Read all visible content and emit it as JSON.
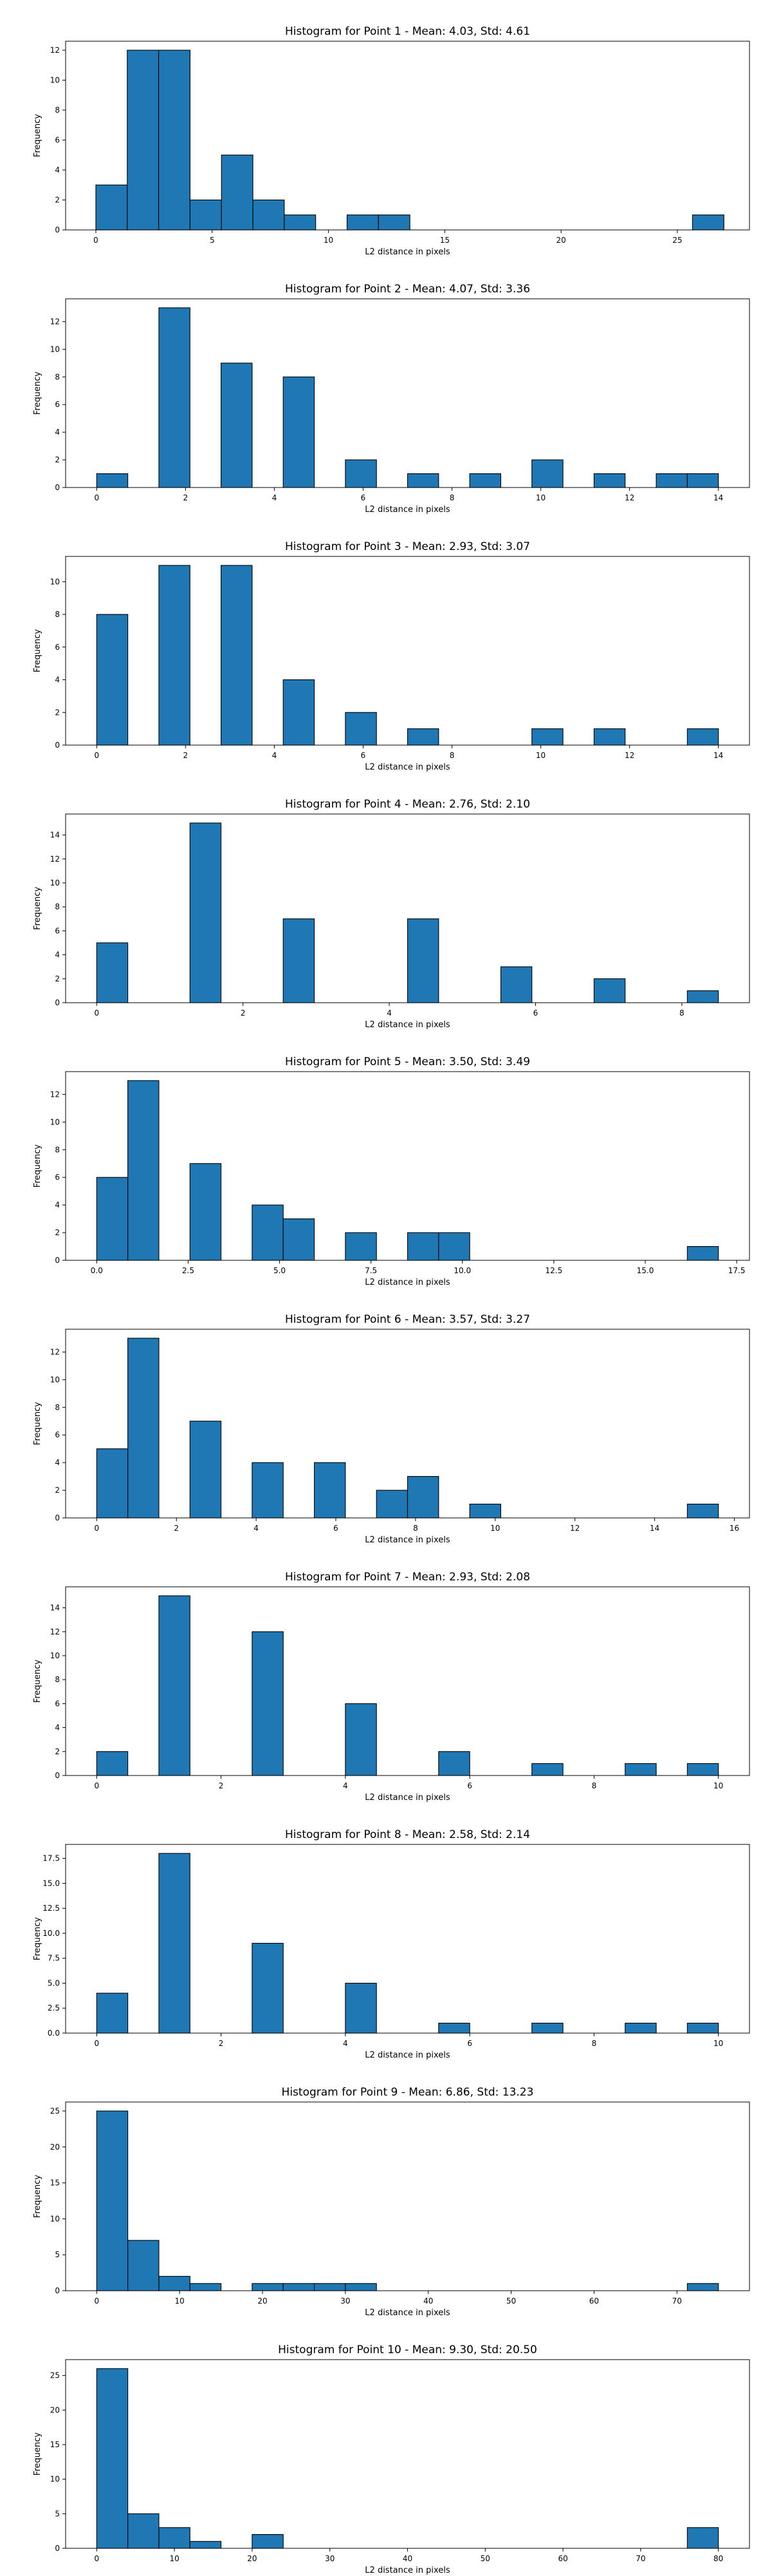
{
  "chart_data": [
    {
      "type": "bar",
      "title": "Histogram for Point 1 - Mean: 4.03, Std: 4.61",
      "xlabel": "L2 distance in pixels",
      "ylabel": "Frequency",
      "xlim": [
        -1.3,
        28.1
      ],
      "ylim": [
        0,
        12.6
      ],
      "xticks": [
        0,
        5,
        10,
        15,
        20,
        25
      ],
      "xtick_labels": [
        "0",
        "5",
        "10",
        "15",
        "20",
        "25"
      ],
      "yticks": [
        0,
        2,
        4,
        6,
        8,
        10,
        12
      ],
      "ytick_labels": [
        "0",
        "2",
        "4",
        "6",
        "8",
        "10",
        "12"
      ],
      "bins": [
        {
          "x0": 0.0,
          "x1": 1.35,
          "count": 3
        },
        {
          "x0": 1.35,
          "x1": 2.7,
          "count": 12
        },
        {
          "x0": 2.7,
          "x1": 4.05,
          "count": 12
        },
        {
          "x0": 4.05,
          "x1": 5.4,
          "count": 2
        },
        {
          "x0": 5.4,
          "x1": 6.75,
          "count": 5
        },
        {
          "x0": 6.75,
          "x1": 8.1,
          "count": 2
        },
        {
          "x0": 8.1,
          "x1": 9.45,
          "count": 1
        },
        {
          "x0": 10.8,
          "x1": 12.15,
          "count": 1
        },
        {
          "x0": 12.15,
          "x1": 13.5,
          "count": 1
        },
        {
          "x0": 25.65,
          "x1": 27.0,
          "count": 1
        }
      ]
    },
    {
      "type": "bar",
      "title": "Histogram for Point 2 - Mean: 4.07, Std: 3.36",
      "xlabel": "L2 distance in pixels",
      "ylabel": "Frequency",
      "xlim": [
        -0.7,
        14.7
      ],
      "ylim": [
        0,
        13.65
      ],
      "xticks": [
        0,
        2,
        4,
        6,
        8,
        10,
        12,
        14
      ],
      "xtick_labels": [
        "0",
        "2",
        "4",
        "6",
        "8",
        "10",
        "12",
        "14"
      ],
      "yticks": [
        0,
        2,
        4,
        6,
        8,
        10,
        12
      ],
      "ytick_labels": [
        "0",
        "2",
        "4",
        "6",
        "8",
        "10",
        "12"
      ],
      "bins": [
        {
          "x0": 0.0,
          "x1": 0.7,
          "count": 1
        },
        {
          "x0": 1.4,
          "x1": 2.1,
          "count": 13
        },
        {
          "x0": 2.8,
          "x1": 3.5,
          "count": 9
        },
        {
          "x0": 4.2,
          "x1": 4.9,
          "count": 8
        },
        {
          "x0": 5.6,
          "x1": 6.3,
          "count": 2
        },
        {
          "x0": 7.0,
          "x1": 7.7,
          "count": 1
        },
        {
          "x0": 8.4,
          "x1": 9.1,
          "count": 1
        },
        {
          "x0": 9.8,
          "x1": 10.5,
          "count": 2
        },
        {
          "x0": 11.2,
          "x1": 11.9,
          "count": 1
        },
        {
          "x0": 12.6,
          "x1": 13.3,
          "count": 1
        },
        {
          "x0": 13.3,
          "x1": 14.0,
          "count": 1
        }
      ]
    },
    {
      "type": "bar",
      "title": "Histogram for Point 3 - Mean: 2.93, Std: 3.07",
      "xlabel": "L2 distance in pixels",
      "ylabel": "Frequency",
      "xlim": [
        -0.7,
        14.7
      ],
      "ylim": [
        0,
        11.55
      ],
      "xticks": [
        0,
        2,
        4,
        6,
        8,
        10,
        12,
        14
      ],
      "xtick_labels": [
        "0",
        "2",
        "4",
        "6",
        "8",
        "10",
        "12",
        "14"
      ],
      "yticks": [
        0,
        2,
        4,
        6,
        8,
        10
      ],
      "ytick_labels": [
        "0",
        "2",
        "4",
        "6",
        "8",
        "10"
      ],
      "bins": [
        {
          "x0": 0.0,
          "x1": 0.7,
          "count": 8
        },
        {
          "x0": 1.4,
          "x1": 2.1,
          "count": 11
        },
        {
          "x0": 2.8,
          "x1": 3.5,
          "count": 11
        },
        {
          "x0": 4.2,
          "x1": 4.9,
          "count": 4
        },
        {
          "x0": 5.6,
          "x1": 6.3,
          "count": 2
        },
        {
          "x0": 7.0,
          "x1": 7.7,
          "count": 1
        },
        {
          "x0": 9.8,
          "x1": 10.5,
          "count": 1
        },
        {
          "x0": 11.2,
          "x1": 11.9,
          "count": 1
        },
        {
          "x0": 13.3,
          "x1": 14.0,
          "count": 1
        }
      ]
    },
    {
      "type": "bar",
      "title": "Histogram for Point 4 - Mean: 2.76, Std: 2.10",
      "xlabel": "L2 distance in pixels",
      "ylabel": "Frequency",
      "xlim": [
        -0.425,
        8.925
      ],
      "ylim": [
        0,
        15.75
      ],
      "xticks": [
        0,
        2,
        4,
        6,
        8
      ],
      "xtick_labels": [
        "0",
        "2",
        "4",
        "6",
        "8"
      ],
      "yticks": [
        0,
        2,
        4,
        6,
        8,
        10,
        12,
        14
      ],
      "ytick_labels": [
        "0",
        "2",
        "4",
        "6",
        "8",
        "10",
        "12",
        "14"
      ],
      "bins": [
        {
          "x0": 0.0,
          "x1": 0.425,
          "count": 5
        },
        {
          "x0": 1.275,
          "x1": 1.7,
          "count": 15
        },
        {
          "x0": 2.55,
          "x1": 2.975,
          "count": 7
        },
        {
          "x0": 4.25,
          "x1": 4.675,
          "count": 7
        },
        {
          "x0": 5.525,
          "x1": 5.95,
          "count": 3
        },
        {
          "x0": 6.8,
          "x1": 7.225,
          "count": 2
        },
        {
          "x0": 8.075,
          "x1": 8.5,
          "count": 1
        }
      ]
    },
    {
      "type": "bar",
      "title": "Histogram for Point 5 - Mean: 3.50, Std: 3.49",
      "xlabel": "L2 distance in pixels",
      "ylabel": "Frequency",
      "xlim": [
        -0.85,
        17.85
      ],
      "ylim": [
        0,
        13.65
      ],
      "xticks": [
        0.0,
        2.5,
        5.0,
        7.5,
        10.0,
        12.5,
        15.0,
        17.5
      ],
      "xtick_labels": [
        "0.0",
        "2.5",
        "5.0",
        "7.5",
        "10.0",
        "12.5",
        "15.0",
        "17.5"
      ],
      "yticks": [
        0,
        2,
        4,
        6,
        8,
        10,
        12
      ],
      "ytick_labels": [
        "0",
        "2",
        "4",
        "6",
        "8",
        "10",
        "12"
      ],
      "bins": [
        {
          "x0": 0.0,
          "x1": 0.85,
          "count": 6
        },
        {
          "x0": 0.85,
          "x1": 1.7,
          "count": 13
        },
        {
          "x0": 2.55,
          "x1": 3.4,
          "count": 7
        },
        {
          "x0": 4.25,
          "x1": 5.1,
          "count": 4
        },
        {
          "x0": 5.1,
          "x1": 5.95,
          "count": 3
        },
        {
          "x0": 6.8,
          "x1": 7.65,
          "count": 2
        },
        {
          "x0": 8.5,
          "x1": 9.35,
          "count": 2
        },
        {
          "x0": 9.35,
          "x1": 10.2,
          "count": 2
        },
        {
          "x0": 16.15,
          "x1": 17.0,
          "count": 1
        }
      ]
    },
    {
      "type": "bar",
      "title": "Histogram for Point 6 - Mean: 3.57, Std: 3.27",
      "xlabel": "L2 distance in pixels",
      "ylabel": "Frequency",
      "xlim": [
        -0.78,
        16.38
      ],
      "ylim": [
        0,
        13.65
      ],
      "xticks": [
        0,
        2,
        4,
        6,
        8,
        10,
        12,
        14,
        16
      ],
      "xtick_labels": [
        "0",
        "2",
        "4",
        "6",
        "8",
        "10",
        "12",
        "14",
        "16"
      ],
      "yticks": [
        0,
        2,
        4,
        6,
        8,
        10,
        12
      ],
      "ytick_labels": [
        "0",
        "2",
        "4",
        "6",
        "8",
        "10",
        "12"
      ],
      "bins": [
        {
          "x0": 0.0,
          "x1": 0.78,
          "count": 5
        },
        {
          "x0": 0.78,
          "x1": 1.56,
          "count": 13
        },
        {
          "x0": 2.34,
          "x1": 3.12,
          "count": 7
        },
        {
          "x0": 3.9,
          "x1": 4.68,
          "count": 4
        },
        {
          "x0": 5.46,
          "x1": 6.24,
          "count": 4
        },
        {
          "x0": 7.02,
          "x1": 7.8,
          "count": 2
        },
        {
          "x0": 7.8,
          "x1": 8.58,
          "count": 3
        },
        {
          "x0": 9.36,
          "x1": 10.14,
          "count": 1
        },
        {
          "x0": 14.82,
          "x1": 15.6,
          "count": 1
        }
      ]
    },
    {
      "type": "bar",
      "title": "Histogram for Point 7 - Mean: 2.93, Std: 2.08",
      "xlabel": "L2 distance in pixels",
      "ylabel": "Frequency",
      "xlim": [
        -0.5,
        10.5
      ],
      "ylim": [
        0,
        15.75
      ],
      "xticks": [
        0,
        2,
        4,
        6,
        8,
        10
      ],
      "xtick_labels": [
        "0",
        "2",
        "4",
        "6",
        "8",
        "10"
      ],
      "yticks": [
        0,
        2,
        4,
        6,
        8,
        10,
        12,
        14
      ],
      "ytick_labels": [
        "0",
        "2",
        "4",
        "6",
        "8",
        "10",
        "12",
        "14"
      ],
      "bins": [
        {
          "x0": 0.0,
          "x1": 0.5,
          "count": 2
        },
        {
          "x0": 1.0,
          "x1": 1.5,
          "count": 15
        },
        {
          "x0": 2.5,
          "x1": 3.0,
          "count": 12
        },
        {
          "x0": 4.0,
          "x1": 4.5,
          "count": 6
        },
        {
          "x0": 5.5,
          "x1": 6.0,
          "count": 2
        },
        {
          "x0": 7.0,
          "x1": 7.5,
          "count": 1
        },
        {
          "x0": 8.5,
          "x1": 9.0,
          "count": 1
        },
        {
          "x0": 9.5,
          "x1": 10.0,
          "count": 1
        }
      ]
    },
    {
      "type": "bar",
      "title": "Histogram for Point 8 - Mean: 2.58, Std: 2.14",
      "xlabel": "L2 distance in pixels",
      "ylabel": "Frequency",
      "xlim": [
        -0.5,
        10.5
      ],
      "ylim": [
        0,
        18.9
      ],
      "xticks": [
        0,
        2,
        4,
        6,
        8,
        10
      ],
      "xtick_labels": [
        "0",
        "2",
        "4",
        "6",
        "8",
        "10"
      ],
      "yticks": [
        0.0,
        2.5,
        5.0,
        7.5,
        10.0,
        12.5,
        15.0,
        17.5
      ],
      "ytick_labels": [
        "0.0",
        "2.5",
        "5.0",
        "7.5",
        "10.0",
        "12.5",
        "15.0",
        "17.5"
      ],
      "bins": [
        {
          "x0": 0.0,
          "x1": 0.5,
          "count": 4
        },
        {
          "x0": 1.0,
          "x1": 1.5,
          "count": 18
        },
        {
          "x0": 2.5,
          "x1": 3.0,
          "count": 9
        },
        {
          "x0": 4.0,
          "x1": 4.5,
          "count": 5
        },
        {
          "x0": 5.5,
          "x1": 6.0,
          "count": 1
        },
        {
          "x0": 7.0,
          "x1": 7.5,
          "count": 1
        },
        {
          "x0": 8.5,
          "x1": 9.0,
          "count": 1
        },
        {
          "x0": 9.5,
          "x1": 10.0,
          "count": 1
        }
      ]
    },
    {
      "type": "bar",
      "title": "Histogram for Point 9 - Mean: 6.86, Std: 13.23",
      "xlabel": "L2 distance in pixels",
      "ylabel": "Frequency",
      "xlim": [
        -3.75,
        78.75
      ],
      "ylim": [
        0,
        26.25
      ],
      "xticks": [
        0,
        10,
        20,
        30,
        40,
        50,
        60,
        70
      ],
      "xtick_labels": [
        "0",
        "10",
        "20",
        "30",
        "40",
        "50",
        "60",
        "70"
      ],
      "yticks": [
        0,
        5,
        10,
        15,
        20,
        25
      ],
      "ytick_labels": [
        "0",
        "5",
        "10",
        "15",
        "20",
        "25"
      ],
      "bins": [
        {
          "x0": 0.0,
          "x1": 3.75,
          "count": 25
        },
        {
          "x0": 3.75,
          "x1": 7.5,
          "count": 7
        },
        {
          "x0": 7.5,
          "x1": 11.25,
          "count": 2
        },
        {
          "x0": 11.25,
          "x1": 15.0,
          "count": 1
        },
        {
          "x0": 18.75,
          "x1": 22.5,
          "count": 1
        },
        {
          "x0": 22.5,
          "x1": 26.25,
          "count": 1
        },
        {
          "x0": 26.25,
          "x1": 30.0,
          "count": 1
        },
        {
          "x0": 30.0,
          "x1": 33.75,
          "count": 1
        },
        {
          "x0": 71.25,
          "x1": 75.0,
          "count": 1
        }
      ]
    },
    {
      "type": "bar",
      "title": "Histogram for Point 10 - Mean: 9.30, Std: 20.50",
      "xlabel": "L2 distance in pixels",
      "ylabel": "Frequency",
      "xlim": [
        -4.0,
        84.0
      ],
      "ylim": [
        0,
        27.3
      ],
      "xticks": [
        0,
        10,
        20,
        30,
        40,
        50,
        60,
        70,
        80
      ],
      "xtick_labels": [
        "0",
        "10",
        "20",
        "30",
        "40",
        "50",
        "60",
        "70",
        "80"
      ],
      "yticks": [
        0,
        5,
        10,
        15,
        20,
        25
      ],
      "ytick_labels": [
        "0",
        "5",
        "10",
        "15",
        "20",
        "25"
      ],
      "bins": [
        {
          "x0": 0.0,
          "x1": 4.0,
          "count": 26
        },
        {
          "x0": 4.0,
          "x1": 8.0,
          "count": 5
        },
        {
          "x0": 8.0,
          "x1": 12.0,
          "count": 3
        },
        {
          "x0": 12.0,
          "x1": 16.0,
          "count": 1
        },
        {
          "x0": 20.0,
          "x1": 24.0,
          "count": 2
        },
        {
          "x0": 76.0,
          "x1": 80.0,
          "count": 3
        }
      ]
    }
  ]
}
